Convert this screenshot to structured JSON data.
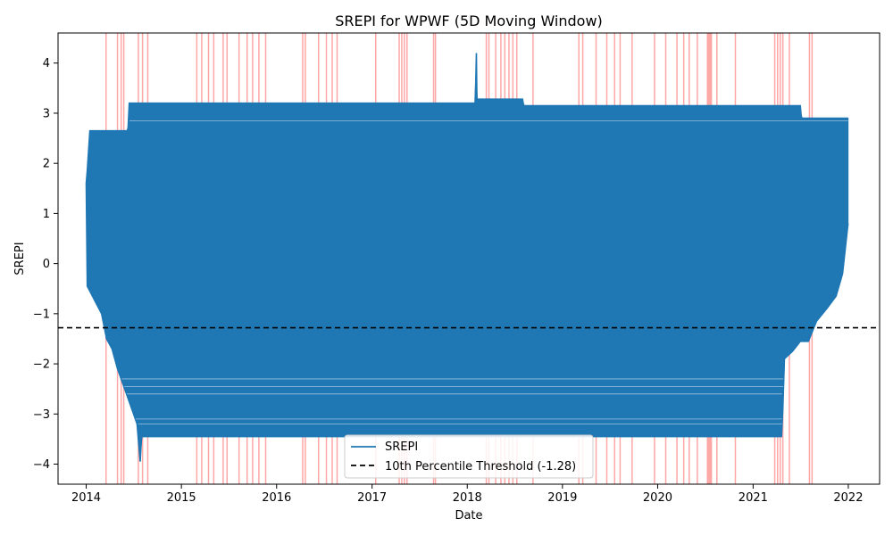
{
  "chart_data": {
    "type": "line",
    "title": "SREPI for WPWF (5D Moving Window)",
    "xlabel": "Date",
    "ylabel": "SREPI",
    "xlim": [
      "2013-09-15",
      "2022-05-01"
    ],
    "ylim": [
      -4.4,
      4.6
    ],
    "x_ticks": [
      "2014",
      "2015",
      "2016",
      "2017",
      "2018",
      "2019",
      "2020",
      "2021",
      "2022"
    ],
    "y_ticks": [
      -4,
      -3,
      -2,
      -1,
      0,
      1,
      2,
      3,
      4
    ],
    "grid": false,
    "legend_position": "lower center",
    "threshold": {
      "label": "10th Percentile Threshold (-1.28)",
      "value": -1.28,
      "style": "dashed",
      "color": "#000000"
    },
    "series": [
      {
        "name": "SREPI",
        "color": "#1f77b4",
        "envelope_low": [
          [
            "2014-01-01",
            1.6
          ],
          [
            "2014-01-05",
            -0.45
          ],
          [
            "2014-03-01",
            -1.0
          ],
          [
            "2014-03-20",
            -1.5
          ],
          [
            "2014-04-10",
            -1.7
          ],
          [
            "2014-05-01",
            -2.1
          ],
          [
            "2014-06-01",
            -2.55
          ],
          [
            "2014-07-15",
            -3.2
          ],
          [
            "2014-07-27",
            -3.95
          ],
          [
            "2014-08-01",
            -3.45
          ],
          [
            "2021-04-20",
            -3.45
          ],
          [
            "2021-04-25",
            -2.9
          ],
          [
            "2021-05-01",
            -1.9
          ],
          [
            "2021-06-01",
            -1.75
          ],
          [
            "2021-07-01",
            -1.55
          ],
          [
            "2021-08-01",
            -1.55
          ],
          [
            "2021-09-01",
            -1.15
          ],
          [
            "2021-10-10",
            -0.9
          ],
          [
            "2021-11-15",
            -0.65
          ],
          [
            "2021-12-10",
            -0.2
          ],
          [
            "2021-12-31",
            0.8
          ]
        ],
        "envelope_high": [
          [
            "2014-01-01",
            1.6
          ],
          [
            "2014-01-05",
            1.85
          ],
          [
            "2014-01-15",
            2.65
          ],
          [
            "2014-06-10",
            2.65
          ],
          [
            "2014-06-15",
            3.2
          ],
          [
            "2018-02-01",
            3.2
          ],
          [
            "2018-02-05",
            4.2
          ],
          [
            "2018-02-07",
            3.28
          ],
          [
            "2018-08-01",
            3.28
          ],
          [
            "2018-08-05",
            3.15
          ],
          [
            "2021-07-01",
            3.15
          ],
          [
            "2021-07-05",
            2.9
          ],
          [
            "2021-12-31",
            2.9
          ]
        ]
      }
    ],
    "shaded_dates": [
      "2014-03-18",
      "2014-05-01",
      "2014-05-15",
      "2014-05-25",
      "2014-07-20",
      "2014-08-05",
      "2014-08-25",
      "2015-03-01",
      "2015-03-20",
      "2015-04-15",
      "2015-05-05",
      "2015-06-10",
      "2015-06-25",
      "2015-08-10",
      "2015-09-10",
      "2015-10-01",
      "2015-10-25",
      "2015-11-20",
      "2016-04-10",
      "2016-04-20",
      "2016-06-10",
      "2016-07-10",
      "2016-08-01",
      "2016-08-20",
      "2017-01-15",
      "2017-04-15",
      "2017-04-25",
      "2017-05-05",
      "2017-05-15",
      "2017-08-25",
      "2017-09-01",
      "2018-03-15",
      "2018-03-25",
      "2018-04-20",
      "2018-05-10",
      "2018-05-25",
      "2018-06-10",
      "2018-06-25",
      "2018-07-10",
      "2018-09-10",
      "2019-03-05",
      "2019-03-20",
      "2019-05-10",
      "2019-06-20",
      "2019-07-20",
      "2019-08-10",
      "2019-09-25",
      "2019-12-20",
      "2020-02-01",
      "2020-03-15",
      "2020-04-10",
      "2020-05-01",
      "2020-06-01",
      "2020-07-10",
      "2020-07-15",
      "2020-07-20",
      "2020-07-25",
      "2020-08-15",
      "2020-10-25",
      "2021-03-25",
      "2021-04-05",
      "2021-04-15",
      "2021-04-25",
      "2021-05-20",
      "2021-08-05",
      "2021-08-15"
    ]
  }
}
